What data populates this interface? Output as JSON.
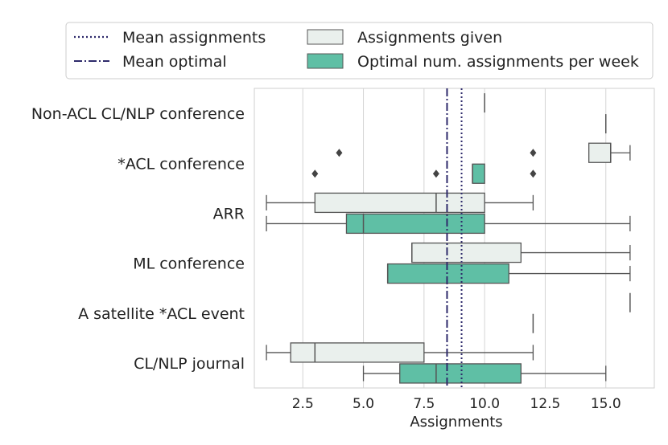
{
  "chart_data": {
    "type": "boxplot",
    "orientation": "horizontal",
    "title": "",
    "xlabel": "Assignments",
    "ylabel": "",
    "xlim": [
      0.5,
      17.0
    ],
    "xticks": [
      2.5,
      5.0,
      7.5,
      10.0,
      12.5,
      15.0
    ],
    "xtick_labels": [
      "2.5",
      "5.0",
      "7.5",
      "10.0",
      "12.5",
      "15.0"
    ],
    "grid": "vertical",
    "categories": [
      "Non-ACL CL/NLP conference",
      "*ACL conference",
      "ARR",
      "ML conference",
      "A satellite *ACL event",
      "CL/NLP journal"
    ],
    "series": [
      {
        "name": "Assignments given",
        "color": "#eaf0ed",
        "boxes": [
          {
            "category": "Non-ACL CL/NLP conference",
            "whisker_low": 10,
            "q1": 10,
            "median": 10,
            "q3": 10,
            "whisker_high": 10,
            "outliers": []
          },
          {
            "category": "*ACL conference",
            "whisker_low": 14.3,
            "q1": 14.3,
            "median": 15.2,
            "q3": 15.2,
            "whisker_high": 16,
            "outliers": [
              4,
              12
            ]
          },
          {
            "category": "ARR",
            "whisker_low": 1,
            "q1": 3,
            "median": 8,
            "q3": 10,
            "whisker_high": 12,
            "outliers": []
          },
          {
            "category": "ML conference",
            "whisker_low": 7,
            "q1": 7,
            "median": 7,
            "q3": 11.5,
            "whisker_high": 16,
            "outliers": []
          },
          {
            "category": "A satellite *ACL event",
            "whisker_low": 16,
            "q1": 16,
            "median": 16,
            "q3": 16,
            "whisker_high": 16,
            "outliers": []
          },
          {
            "category": "CL/NLP journal",
            "whisker_low": 1,
            "q1": 2,
            "median": 3,
            "q3": 7.5,
            "whisker_high": 12,
            "outliers": []
          }
        ]
      },
      {
        "name": "Optimal num. assignments per week",
        "color": "#5fbfa5",
        "boxes": [
          {
            "category": "Non-ACL CL/NLP conference",
            "whisker_low": 15,
            "q1": 15,
            "median": 15,
            "q3": 15,
            "whisker_high": 15,
            "outliers": []
          },
          {
            "category": "*ACL conference",
            "whisker_low": 9.5,
            "q1": 9.5,
            "median": 9.5,
            "q3": 10,
            "whisker_high": 10,
            "outliers": [
              3,
              8,
              12
            ]
          },
          {
            "category": "ARR",
            "whisker_low": 1,
            "q1": 4.3,
            "median": 5,
            "q3": 10,
            "whisker_high": 16,
            "outliers": []
          },
          {
            "category": "ML conference",
            "whisker_low": 6,
            "q1": 6,
            "median": 6,
            "q3": 11,
            "whisker_high": 16,
            "outliers": []
          },
          {
            "category": "A satellite *ACL event",
            "whisker_low": 12,
            "q1": 12,
            "median": 12,
            "q3": 12,
            "whisker_high": 12,
            "outliers": []
          },
          {
            "category": "CL/NLP journal",
            "whisker_low": 5,
            "q1": 6.5,
            "median": 8,
            "q3": 11.5,
            "whisker_high": 15,
            "outliers": []
          }
        ]
      }
    ],
    "reference_lines": [
      {
        "name": "Mean assignments",
        "value": 9.05,
        "style": "dotted",
        "color": "#2e2a6b"
      },
      {
        "name": "Mean optimal",
        "value": 8.45,
        "style": "dashdot",
        "color": "#2e2a6b"
      }
    ],
    "legend": {
      "placement": "top",
      "entries": [
        "Mean assignments",
        "Mean optimal",
        "Assignments given",
        "Optimal num. assignments per week"
      ]
    }
  }
}
